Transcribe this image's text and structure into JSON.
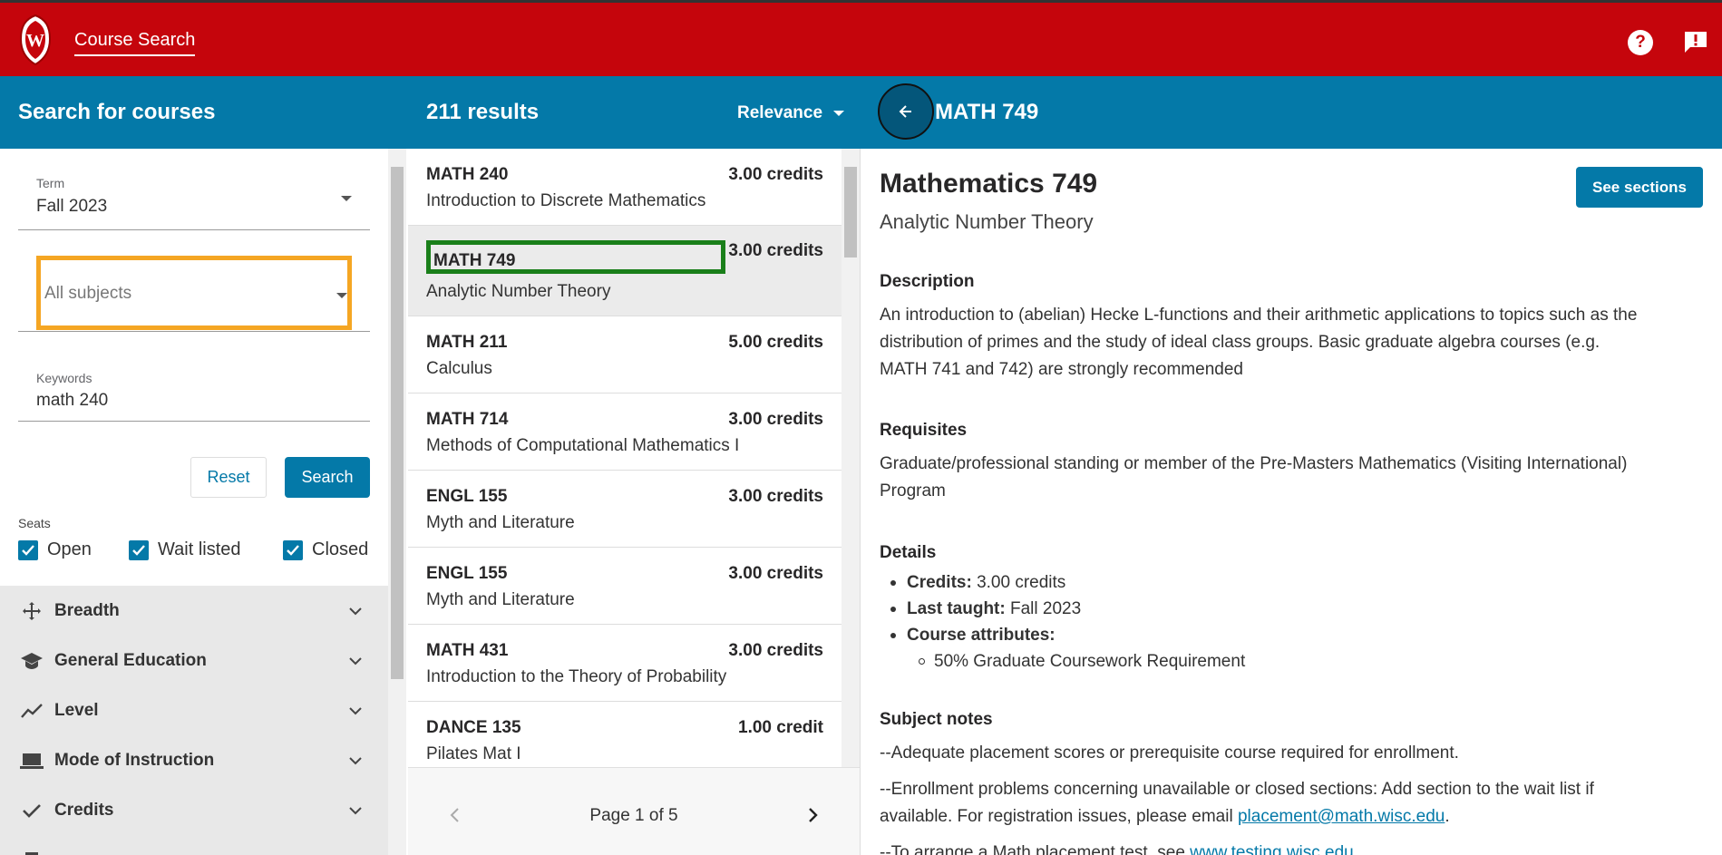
{
  "app": {
    "title": "Course Search"
  },
  "header": {
    "search_title": "Search for courses",
    "results_count": "211 results",
    "sort_label": "Relevance",
    "course_code": "MATH 749"
  },
  "filters": {
    "term_label": "Term",
    "term_value": "Fall 2023",
    "subject_placeholder": "All subjects",
    "keywords_label": "Keywords",
    "keywords_value": "math 240",
    "reset_label": "Reset",
    "search_label": "Search",
    "seats_label": "Seats",
    "seats": [
      {
        "label": "Open",
        "checked": true
      },
      {
        "label": "Wait listed",
        "checked": true
      },
      {
        "label": "Closed",
        "checked": true
      }
    ],
    "accordions": [
      {
        "label": "Breadth",
        "icon": "move-arrows-icon"
      },
      {
        "label": "General Education",
        "icon": "graduation-cap-icon"
      },
      {
        "label": "Level",
        "icon": "trending-line-icon"
      },
      {
        "label": "Mode of Instruction",
        "icon": "laptop-icon"
      },
      {
        "label": "Credits",
        "icon": "check-icon"
      }
    ]
  },
  "results": [
    {
      "code": "MATH 240",
      "credits": "3.00 credits",
      "name": "Introduction to Discrete Mathematics"
    },
    {
      "code": "MATH 749",
      "credits": "3.00 credits",
      "name": "Analytic Number Theory"
    },
    {
      "code": "MATH 211",
      "credits": "5.00 credits",
      "name": "Calculus"
    },
    {
      "code": "MATH 714",
      "credits": "3.00 credits",
      "name": "Methods of Computational Mathematics I"
    },
    {
      "code": "ENGL 155",
      "credits": "3.00 credits",
      "name": "Myth and Literature"
    },
    {
      "code": "ENGL 155",
      "credits": "3.00 credits",
      "name": "Myth and Literature"
    },
    {
      "code": "MATH 431",
      "credits": "3.00 credits",
      "name": "Introduction to the Theory of Probability"
    },
    {
      "code": "DANCE 135",
      "credits": "1.00 credit",
      "name": "Pilates Mat I"
    }
  ],
  "pagination": {
    "label": "Page 1 of 5"
  },
  "details": {
    "title": "Mathematics 749",
    "subtitle": "Analytic Number Theory",
    "see_sections": "See sections",
    "description_heading": "Description",
    "description": "An introduction to (abelian) Hecke L-functions and their arithmetic applications to topics such as the distribution of primes and the study of ideal class groups. Basic graduate algebra courses (e.g. MATH 741 and 742) are strongly recommended",
    "requisites_heading": "Requisites",
    "requisites": "Graduate/professional standing or member of the Pre-Masters Mathematics (Visiting International) Program",
    "details_heading": "Details",
    "credits_label": "Credits:",
    "credits_value": " 3.00 credits",
    "last_taught_label": "Last taught:",
    "last_taught_value": " Fall 2023",
    "attributes_label": "Course attributes:",
    "attribute_item": "50% Graduate Coursework Requirement",
    "notes_heading": "Subject notes",
    "note1": "--Adequate placement scores or prerequisite course required for enrollment.",
    "note2_text": "--Enrollment problems concerning unavailable or closed sections: Add section to the wait list if available. For registration issues, please email ",
    "note2_link": "placement@math.wisc.edu",
    "note2_end": ".",
    "note3_text": "--To arrange a Math placement test, see ",
    "note3_link": "www.testing.wisc.edu"
  },
  "colors": {
    "brand_red": "#c5050c",
    "accent_blue": "#0479a8",
    "highlight_orange": "#f5a623",
    "highlight_green": "#1a7f1a"
  }
}
